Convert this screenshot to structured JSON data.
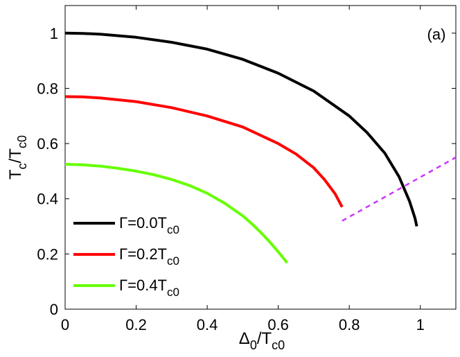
{
  "chart_data": {
    "type": "line",
    "panel_label": "(a)",
    "xlim": [
      0,
      1.1
    ],
    "ylim": [
      0,
      1.1
    ],
    "xticks": [
      0,
      0.2,
      0.4,
      0.6,
      0.8,
      1
    ],
    "yticks": [
      0,
      0.2,
      0.4,
      0.6,
      0.8,
      1
    ],
    "xtick_labels": [
      "0",
      "0.2",
      "0.4",
      "0.6",
      "0.8",
      "1"
    ],
    "ytick_labels": [
      "0",
      "0.2",
      "0.4",
      "0.6",
      "0.8",
      "1"
    ],
    "xlabel": {
      "main": "Δ",
      "sub": "0",
      "mid": "/T",
      "sub2": "c0"
    },
    "ylabel": {
      "main": "T",
      "sub": "c",
      "mid": "/T",
      "sub2": "c0"
    },
    "grid": false,
    "legend_position": "bottom-left",
    "series": [
      {
        "legend_main": "Γ=0.4T",
        "legend_sub": "c0",
        "color": "#66ff00",
        "x": [
          0,
          0.05,
          0.1,
          0.15,
          0.2,
          0.25,
          0.3,
          0.35,
          0.4,
          0.45,
          0.5,
          0.525,
          0.55,
          0.575,
          0.6,
          0.625
        ],
        "y": [
          0.525,
          0.523,
          0.518,
          0.51,
          0.5,
          0.487,
          0.47,
          0.448,
          0.42,
          0.383,
          0.338,
          0.31,
          0.279,
          0.245,
          0.208,
          0.168
        ]
      },
      {
        "legend_main": "Γ=0.2T",
        "legend_sub": "c0",
        "color": "#ff0000",
        "x": [
          0,
          0.05,
          0.1,
          0.2,
          0.3,
          0.4,
          0.5,
          0.6,
          0.65,
          0.7,
          0.73,
          0.76,
          0.78
        ],
        "y": [
          0.77,
          0.769,
          0.765,
          0.752,
          0.73,
          0.7,
          0.66,
          0.6,
          0.562,
          0.512,
          0.47,
          0.418,
          0.37
        ]
      },
      {
        "legend_main": "Γ=0.0T",
        "legend_sub": "c0",
        "color": "#000000",
        "x": [
          0,
          0.05,
          0.1,
          0.2,
          0.3,
          0.4,
          0.5,
          0.6,
          0.7,
          0.8,
          0.85,
          0.9,
          0.94,
          0.97,
          0.985,
          0.99
        ],
        "y": [
          1.0,
          0.999,
          0.996,
          0.985,
          0.967,
          0.942,
          0.905,
          0.855,
          0.79,
          0.7,
          0.64,
          0.565,
          0.48,
          0.39,
          0.33,
          0.3
        ]
      },
      {
        "color": "#cc33ff",
        "dashed": true,
        "x": [
          0.78,
          1.1
        ],
        "y": [
          0.32,
          0.55
        ]
      }
    ],
    "legend_order": [
      2,
      1,
      0
    ]
  }
}
